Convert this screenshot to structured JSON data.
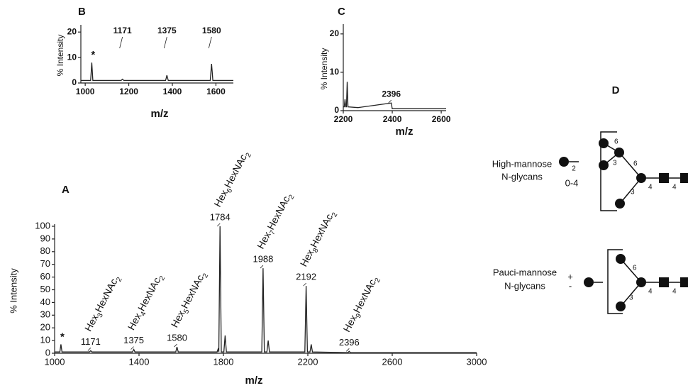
{
  "chart_data": [
    {
      "type": "line",
      "panel": "A",
      "xlabel": "m/z",
      "ylabel": "% Intensity",
      "color": "#222",
      "xlim": [
        1000,
        3000
      ],
      "xticks": [
        1000,
        1400,
        1800,
        2200,
        2600,
        3000
      ],
      "ylim": [
        0,
        100
      ],
      "yticks": [
        0,
        10,
        20,
        30,
        40,
        50,
        60,
        70,
        80,
        90,
        100
      ],
      "x": [
        1000,
        1025,
        1030,
        1035,
        1165,
        1171,
        1177,
        1369,
        1375,
        1381,
        1574,
        1580,
        1586,
        1770,
        1776,
        1778,
        1784,
        1790,
        1802,
        1808,
        1814,
        1982,
        1988,
        1994,
        2006,
        2012,
        2018,
        2186,
        2192,
        2198,
        2210,
        2216,
        2222,
        2390,
        2396,
        2402,
        3000
      ],
      "values": [
        1,
        1,
        7,
        1,
        1,
        2,
        1,
        1,
        3,
        1,
        1,
        5,
        1,
        1,
        4,
        1,
        100,
        1,
        1,
        14,
        1,
        1,
        67,
        1,
        1,
        10,
        1,
        1,
        53,
        1,
        1,
        7,
        1,
        0.5,
        1.5,
        0.5,
        0.5
      ],
      "annotations": [
        {
          "x": 1030,
          "label": "*"
        },
        {
          "x": 1171,
          "glycan": "Hex3HexNAc2"
        },
        {
          "x": 1375,
          "glycan": "Hex4HexNAc2"
        },
        {
          "x": 1580,
          "glycan": "Hex5HexNAc2"
        },
        {
          "x": 1784,
          "glycan": "Hex6HexNAc2"
        },
        {
          "x": 1988,
          "glycan": "Hex7HexNAc2"
        },
        {
          "x": 2192,
          "glycan": "Hex8HexNAc2"
        },
        {
          "x": 2396,
          "glycan": "Hex9HexNAc2"
        }
      ]
    },
    {
      "type": "line",
      "panel": "B",
      "xlabel": "m/z",
      "ylabel": "% Intensity",
      "color": "#222",
      "xlim": [
        980,
        1680
      ],
      "xticks": [
        1000,
        1200,
        1400,
        1600
      ],
      "ylim": [
        0,
        22
      ],
      "yticks": [
        0,
        10,
        20
      ],
      "x": [
        980,
        1025,
        1030,
        1035,
        1165,
        1171,
        1177,
        1369,
        1375,
        1381,
        1574,
        1580,
        1586,
        1680
      ],
      "values": [
        1,
        1,
        8,
        1,
        1,
        1.5,
        1,
        1,
        3,
        1,
        1,
        7.5,
        1,
        1
      ],
      "annotations": [
        {
          "x": 1030,
          "label": "*"
        },
        {
          "x": 1171
        },
        {
          "x": 1375
        },
        {
          "x": 1580
        }
      ]
    },
    {
      "type": "line",
      "panel": "C",
      "xlabel": "m/z",
      "ylabel": "% Intensity",
      "color": "#222",
      "xlim": [
        2200,
        2620
      ],
      "xticks": [
        2200,
        2400,
        2600
      ],
      "ylim": [
        0,
        22
      ],
      "yticks": [
        0,
        10,
        20
      ],
      "x": [
        2200,
        2204,
        2207,
        2210,
        2213,
        2216,
        2219,
        2260,
        2396,
        2400,
        2620
      ],
      "values": [
        1,
        1,
        3,
        1,
        1,
        7.5,
        1,
        0.8,
        2,
        0.5,
        0.5
      ],
      "annotations": [
        {
          "x": 2396
        }
      ]
    }
  ],
  "diagram": {
    "panel": "D",
    "high_label": "High-mannose",
    "high_sub": "N-glycans",
    "count_range": "0-4",
    "count_sub": "2",
    "high_linkages": [
      "6",
      "3",
      "6",
      "3",
      "4",
      "4"
    ],
    "pauci_label": "Pauci-mannose",
    "pauci_sub": "N-glycans",
    "plus": "+",
    "minus": "-",
    "pauci_linkages": [
      "6",
      "3",
      "4",
      "4"
    ]
  }
}
